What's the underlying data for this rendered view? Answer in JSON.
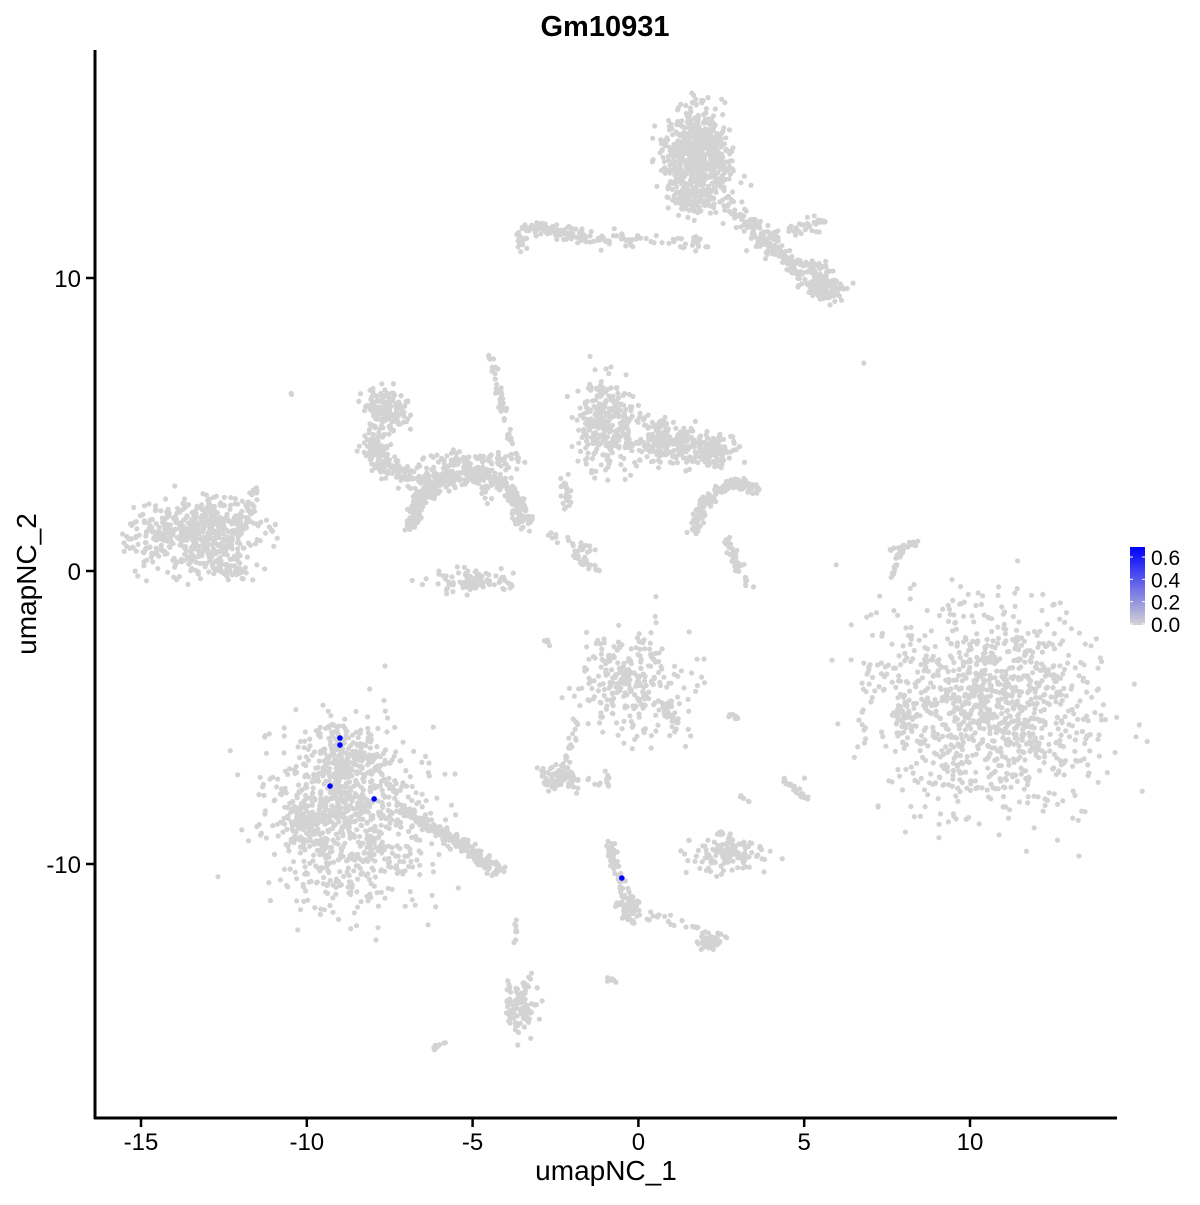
{
  "chart_data": {
    "type": "scatter",
    "title": "Gm10931",
    "xlabel": "umapNC_1",
    "ylabel": "umapNC_2",
    "xlim": [
      -16.4,
      14.4
    ],
    "ylim": [
      -18.7,
      17.8
    ],
    "xticks": [
      "-15",
      "-10",
      "-5",
      "0",
      "5",
      "10"
    ],
    "xtick_values": [
      -15,
      -10,
      -5,
      0,
      5,
      10
    ],
    "yticks": [
      "-10",
      "0",
      "10"
    ],
    "ytick_values": [
      -10,
      0,
      10
    ],
    "grid": false,
    "legend": {
      "position": "right",
      "type": "colorbar",
      "labels": [
        "0.6",
        "0.4",
        "0.2",
        "0.0"
      ],
      "label_values": [
        0.6,
        0.4,
        0.2,
        0.0
      ],
      "range": [
        0,
        0.69
      ],
      "low_color": "#d3d3d3",
      "high_color": "#0000ff"
    },
    "background_color": "#d3d3d3",
    "expressing_points": [
      {
        "x": -9.0,
        "y": -5.7,
        "value": 0.69
      },
      {
        "x": -9.0,
        "y": -5.94,
        "value": 0.69
      },
      {
        "x": -9.3,
        "y": -7.34,
        "value": 0.69
      },
      {
        "x": -7.97,
        "y": -7.78,
        "value": 0.69
      },
      {
        "x": -0.5,
        "y": -10.48,
        "value": 0.69
      }
    ]
  }
}
